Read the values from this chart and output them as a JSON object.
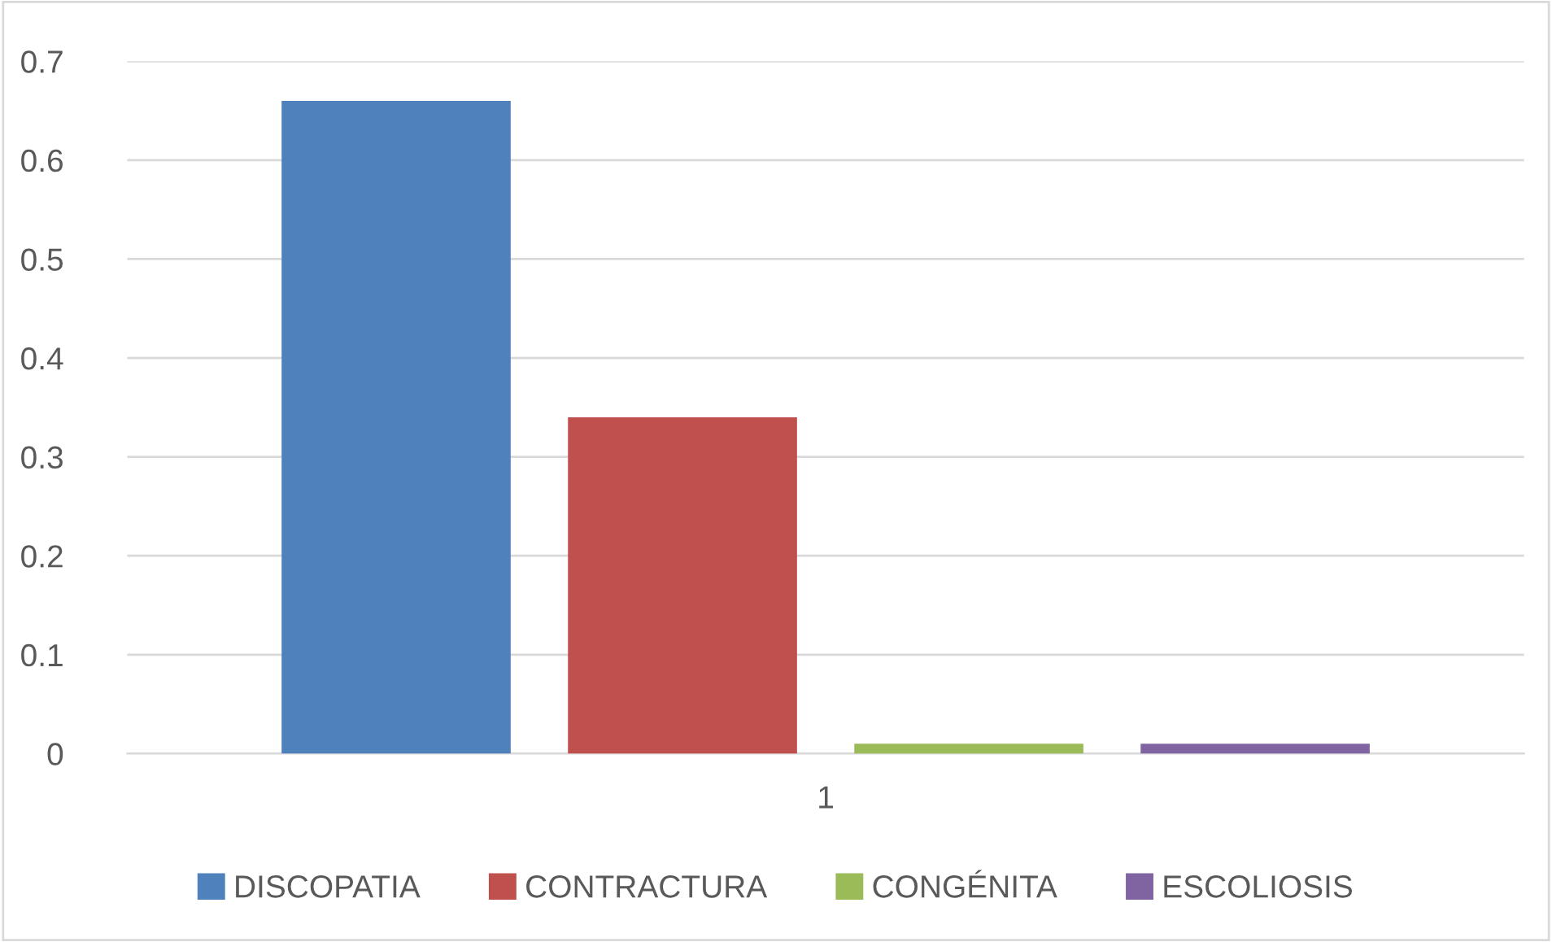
{
  "chart_data": {
    "type": "bar",
    "categories": [
      "1"
    ],
    "series": [
      {
        "name": "DISCOPATIA",
        "color": "#4f81bd",
        "values": [
          0.66
        ]
      },
      {
        "name": "CONTRACTURA",
        "color": "#c0504d",
        "values": [
          0.34
        ]
      },
      {
        "name": "CONGÉNITA",
        "color": "#9bbb59",
        "values": [
          0.01
        ]
      },
      {
        "name": "ESCOLIOSIS",
        "color": "#8064a2",
        "values": [
          0.01
        ]
      }
    ],
    "ylim": [
      0,
      0.7
    ],
    "yticks": [
      0,
      0.1,
      0.2,
      0.3,
      0.4,
      0.5,
      0.6,
      0.7
    ],
    "grid": "y",
    "legend": "bottom"
  }
}
